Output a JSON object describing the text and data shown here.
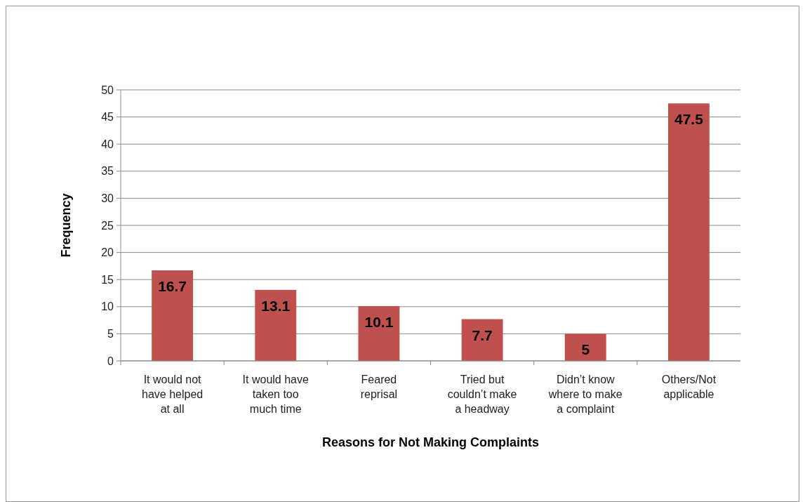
{
  "chart_data": {
    "type": "bar",
    "xlabel": "Reasons for Not Making Complaints",
    "ylabel": "Frequency",
    "categories": [
      "It would not have helped at all",
      "It would have taken too much time",
      "Feared reprisal",
      "Tried but couldn’t make a headway",
      "Didn’t know where to make a complaint",
      "Others/Not applicable"
    ],
    "values": [
      16.7,
      13.1,
      10.1,
      7.7,
      5,
      47.5
    ],
    "color": "#c0504d",
    "ylim": [
      0,
      50
    ],
    "yticks": [
      0,
      5,
      10,
      15,
      20,
      25,
      30,
      35,
      40,
      45,
      50
    ],
    "grid": "y",
    "data_labels": true
  }
}
